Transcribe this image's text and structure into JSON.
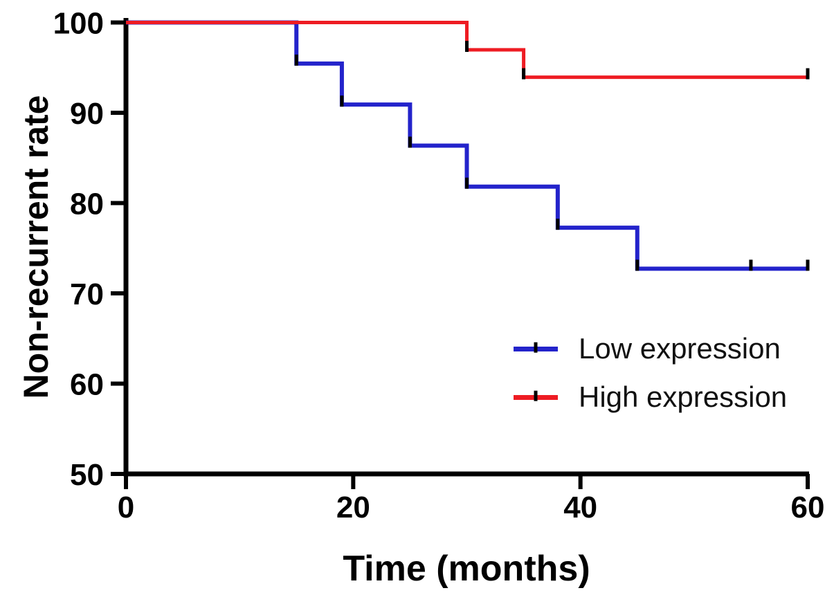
{
  "figure": {
    "background": "#ffffff",
    "axis_color": "#000000",
    "marker_color": "#000000"
  },
  "chart_data": {
    "type": "line",
    "subtype": "kaplan-meier-step",
    "title": "",
    "xlabel": "Time (months)",
    "ylabel": "Non-recurrent rate",
    "xlim": [
      0,
      60
    ],
    "ylim": [
      50,
      100
    ],
    "x_ticks": [
      "0",
      "20",
      "40",
      "60"
    ],
    "x_tick_values": [
      0,
      20,
      40,
      60
    ],
    "y_ticks": [
      "50",
      "60",
      "70",
      "80",
      "90",
      "100"
    ],
    "y_tick_values": [
      50,
      60,
      70,
      80,
      90,
      100
    ],
    "grid": false,
    "legend_position": "inside-lower-right",
    "series": [
      {
        "name": "Low expression",
        "color": "#2323cb",
        "line_width": 6,
        "points": [
          [
            0,
            100
          ],
          [
            15,
            95.45
          ],
          [
            19,
            90.91
          ],
          [
            25,
            86.36
          ],
          [
            30,
            81.82
          ],
          [
            38,
            77.27
          ],
          [
            45,
            72.73
          ]
        ],
        "end_x": 60,
        "event_marks": [
          [
            15,
            95.45
          ],
          [
            19,
            90.91
          ],
          [
            25,
            86.36
          ],
          [
            30,
            81.82
          ],
          [
            38,
            77.27
          ],
          [
            45,
            72.73
          ]
        ],
        "censor_marks": [
          [
            55,
            72.73
          ],
          [
            60,
            72.73
          ]
        ]
      },
      {
        "name": "High expression",
        "color": "#ee1c23",
        "line_width": 5,
        "points": [
          [
            0,
            100
          ],
          [
            30,
            96.97
          ],
          [
            35,
            93.94
          ]
        ],
        "end_x": 60,
        "event_marks": [
          [
            30,
            96.97
          ],
          [
            35,
            93.94
          ]
        ],
        "censor_marks": [
          [
            60,
            93.94
          ]
        ]
      }
    ]
  }
}
